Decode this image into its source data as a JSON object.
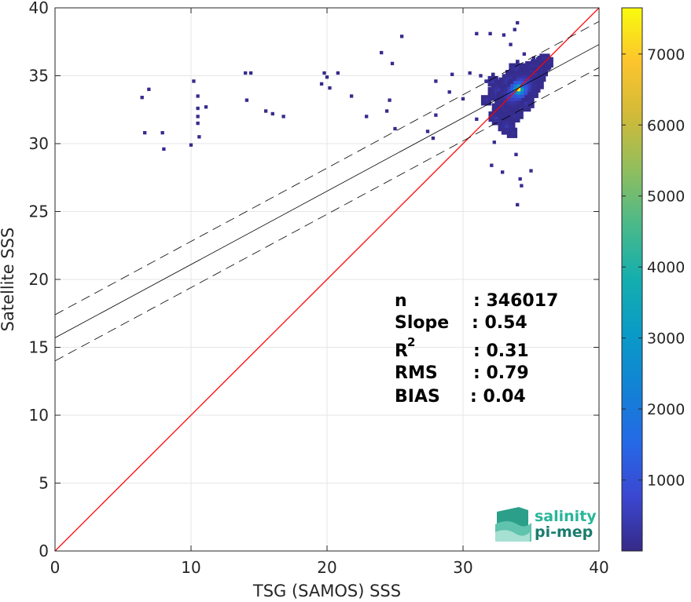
{
  "chart_data": {
    "type": "heatmap",
    "title": "",
    "xlabel": "TSG (SAMOS) SSS",
    "ylabel": "Satellite SSS",
    "xlim": [
      0,
      40
    ],
    "ylim": [
      0,
      40
    ],
    "xticks": [
      "0",
      "10",
      "20",
      "30",
      "40"
    ],
    "yticks": [
      "0",
      "5",
      "10",
      "15",
      "20",
      "25",
      "30",
      "35",
      "40"
    ],
    "grid": true,
    "colormap": "parula",
    "colorbar": {
      "range": [
        0,
        7650
      ],
      "ticks": [
        "1000",
        "2000",
        "3000",
        "4000",
        "5000",
        "6000",
        "7000"
      ],
      "tick_values": [
        1000,
        2000,
        3000,
        4000,
        5000,
        6000,
        7000
      ]
    },
    "identity_line": {
      "x": [
        0,
        40
      ],
      "y": [
        0,
        40
      ],
      "color": "#ff0000"
    },
    "regression": {
      "slope": 0.54,
      "intercept": 15.7,
      "offset": 1.7,
      "x": [
        0,
        40
      ]
    },
    "density_cells": [
      {
        "x": 34.1,
        "y": 34.0,
        "count": 7650
      },
      {
        "x": 33.9,
        "y": 33.8,
        "count": 4200
      },
      {
        "x": 34.3,
        "y": 34.2,
        "count": 3600
      },
      {
        "x": 33.6,
        "y": 33.5,
        "count": 2400
      },
      {
        "x": 34.5,
        "y": 34.4,
        "count": 2600
      },
      {
        "x": 34.8,
        "y": 34.8,
        "count": 2000
      },
      {
        "x": 35.2,
        "y": 35.2,
        "count": 1600
      },
      {
        "x": 33.3,
        "y": 33.0,
        "count": 1500
      },
      {
        "x": 33.0,
        "y": 32.6,
        "count": 1200
      },
      {
        "x": 32.7,
        "y": 33.8,
        "count": 1100
      },
      {
        "x": 33.5,
        "y": 34.5,
        "count": 1300
      },
      {
        "x": 34.0,
        "y": 35.3,
        "count": 900
      },
      {
        "x": 32.5,
        "y": 32.0,
        "count": 700
      },
      {
        "x": 33.2,
        "y": 31.3,
        "count": 600
      },
      {
        "x": 35.6,
        "y": 35.6,
        "count": 900
      },
      {
        "x": 36.0,
        "y": 36.0,
        "count": 600
      },
      {
        "x": 34.6,
        "y": 33.0,
        "count": 500
      },
      {
        "x": 33.8,
        "y": 32.2,
        "count": 500
      },
      {
        "x": 32.2,
        "y": 34.6,
        "count": 400
      },
      {
        "x": 33.6,
        "y": 30.8,
        "count": 300
      },
      {
        "x": 31.7,
        "y": 33.2,
        "count": 300
      },
      {
        "x": 34.9,
        "y": 34.0,
        "count": 800
      },
      {
        "x": 35.3,
        "y": 34.4,
        "count": 500
      }
    ],
    "scatter_cells": [
      {
        "x": 31.0,
        "y": 38.1
      },
      {
        "x": 32.0,
        "y": 38.1
      },
      {
        "x": 33.0,
        "y": 38.0
      },
      {
        "x": 33.8,
        "y": 38.4
      },
      {
        "x": 34.0,
        "y": 38.9
      },
      {
        "x": 33.5,
        "y": 37.3
      },
      {
        "x": 34.5,
        "y": 36.6
      },
      {
        "x": 35.2,
        "y": 36.3
      },
      {
        "x": 29.2,
        "y": 35.1
      },
      {
        "x": 30.5,
        "y": 35.2
      },
      {
        "x": 31.3,
        "y": 35.0
      },
      {
        "x": 28.0,
        "y": 34.6
      },
      {
        "x": 29.0,
        "y": 33.8
      },
      {
        "x": 30.0,
        "y": 33.3
      },
      {
        "x": 28.0,
        "y": 32.1
      },
      {
        "x": 27.8,
        "y": 30.4
      },
      {
        "x": 27.4,
        "y": 30.9
      },
      {
        "x": 31.0,
        "y": 31.8
      },
      {
        "x": 32.9,
        "y": 27.9
      },
      {
        "x": 34.0,
        "y": 25.5
      },
      {
        "x": 34.3,
        "y": 26.9
      },
      {
        "x": 35.0,
        "y": 28.0
      },
      {
        "x": 33.9,
        "y": 29.2
      },
      {
        "x": 32.3,
        "y": 30.1
      },
      {
        "x": 32.1,
        "y": 28.4
      },
      {
        "x": 34.2,
        "y": 27.4
      },
      {
        "x": 6.4,
        "y": 33.4
      },
      {
        "x": 6.9,
        "y": 34.0
      },
      {
        "x": 6.6,
        "y": 30.8
      },
      {
        "x": 7.9,
        "y": 30.8
      },
      {
        "x": 8.0,
        "y": 29.6
      },
      {
        "x": 10.0,
        "y": 29.9
      },
      {
        "x": 10.2,
        "y": 34.6
      },
      {
        "x": 10.5,
        "y": 33.5
      },
      {
        "x": 10.5,
        "y": 32.6
      },
      {
        "x": 10.5,
        "y": 32.0
      },
      {
        "x": 10.5,
        "y": 31.5
      },
      {
        "x": 10.6,
        "y": 30.5
      },
      {
        "x": 11.1,
        "y": 32.7
      },
      {
        "x": 14.0,
        "y": 35.2
      },
      {
        "x": 14.4,
        "y": 35.2
      },
      {
        "x": 14.1,
        "y": 33.2
      },
      {
        "x": 15.5,
        "y": 32.4
      },
      {
        "x": 16.0,
        "y": 32.2
      },
      {
        "x": 16.8,
        "y": 32.0
      },
      {
        "x": 19.8,
        "y": 35.2
      },
      {
        "x": 20.0,
        "y": 34.9
      },
      {
        "x": 20.8,
        "y": 35.2
      },
      {
        "x": 20.2,
        "y": 34.1
      },
      {
        "x": 21.8,
        "y": 33.5
      },
      {
        "x": 22.9,
        "y": 32.0
      },
      {
        "x": 24.4,
        "y": 32.4
      },
      {
        "x": 24.6,
        "y": 33.2
      },
      {
        "x": 24.8,
        "y": 35.9
      },
      {
        "x": 24.0,
        "y": 36.7
      },
      {
        "x": 25.5,
        "y": 37.9
      },
      {
        "x": 25.0,
        "y": 31.1
      },
      {
        "x": 19.6,
        "y": 34.4
      }
    ],
    "stats": [
      {
        "key": "n",
        "value": ": 346017"
      },
      {
        "key": "Slope",
        "value": ": 0.54"
      },
      {
        "key": "R",
        "sup": "2",
        "value": ": 0.31"
      },
      {
        "key": "RMS",
        "value": ": 0.79"
      },
      {
        "key": "BIAS",
        "value": ": 0.04"
      }
    ]
  },
  "logo": {
    "line1": "salinity",
    "line2": "pi-mep",
    "color1": "#29b59a",
    "color2": "#1a7c6e"
  },
  "colors": {
    "identity": "#ff0000",
    "regression": "#000000",
    "grid": "#e6e6e6"
  }
}
